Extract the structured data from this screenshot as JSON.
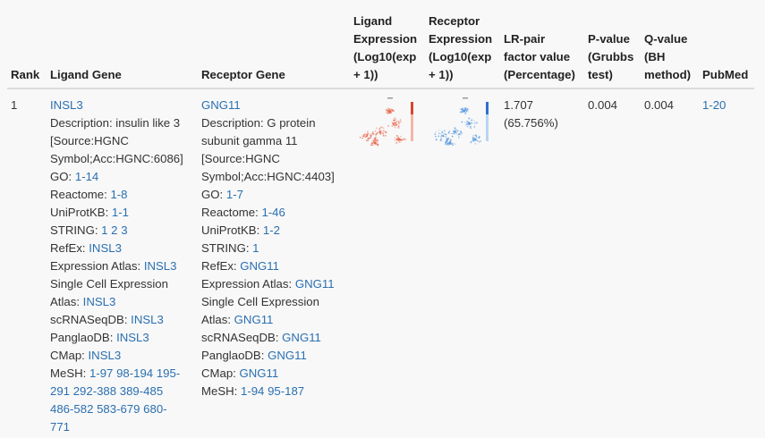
{
  "headers": {
    "rank": "Rank",
    "ligand_gene": "Ligand Gene",
    "receptor_gene": "Receptor Gene",
    "ligand_expr": [
      "Ligand",
      "Expression",
      "(Log10(exp",
      "+ 1))"
    ],
    "receptor_expr": [
      "Receptor",
      "Expression",
      "(Log10(exp",
      "+ 1))"
    ],
    "lr_pair": [
      "LR-pair",
      "factor value",
      "(Percentage)"
    ],
    "pvalue": [
      "P-value",
      "(Grubbs",
      "test)"
    ],
    "qvalue": [
      "Q-value",
      "(BH",
      "method)"
    ],
    "pubmed": "PubMed"
  },
  "row": {
    "rank": "1",
    "ligand": {
      "symbol": "INSL3",
      "desc": [
        "Description: insulin like 3",
        "[Source:HGNC",
        "Symbol;Acc:HGNC:6086]"
      ],
      "go_label": "GO:",
      "go": "1-14",
      "reactome_label": "Reactome:",
      "reactome": "1-8",
      "uniprot_label": "UniProtKB:",
      "uniprot": "1-1",
      "string_label": "STRING:",
      "string": [
        "1",
        "2",
        "3"
      ],
      "refex_label": "RefEx:",
      "refex": "INSL3",
      "atlas_label": "Expression Atlas:",
      "atlas": "INSL3",
      "sc_label_1": "Single Cell Expression",
      "sc_label_2": "Atlas:",
      "sc": "INSL3",
      "scrna_label": "scRNASeqDB:",
      "scrna": "INSL3",
      "panglao_label": "PanglaoDB:",
      "panglao": "INSL3",
      "cmap_label": "CMap:",
      "cmap": "INSL3",
      "mesh_label": "MeSH:",
      "mesh": [
        "1-97",
        "98-194",
        "195-",
        "291",
        "292-388",
        "389-485",
        "486-582",
        "583-679",
        "680-",
        "771"
      ]
    },
    "receptor": {
      "symbol": "GNG11",
      "desc": [
        "Description: G protein",
        "subunit gamma 11",
        "[Source:HGNC",
        "Symbol;Acc:HGNC:4403]"
      ],
      "go_label": "GO:",
      "go": "1-7",
      "reactome_label": "Reactome:",
      "reactome": "1-46",
      "uniprot_label": "UniProtKB:",
      "uniprot": "1-2",
      "string_label": "STRING:",
      "string": "1",
      "refex_label": "RefEx:",
      "refex": "GNG11",
      "atlas_label": "Expression Atlas:",
      "atlas": "GNG11",
      "sc_label_1": "Single Cell Expression",
      "sc_label_2": "Atlas:",
      "sc": "GNG11",
      "scrna_label": "scRNASeqDB:",
      "scrna": "GNG11",
      "panglao_label": "PanglaoDB:",
      "panglao": "GNG11",
      "cmap_label": "CMap:",
      "cmap": "GNG11",
      "mesh_label": "MeSH:",
      "mesh": [
        "1-94",
        "95-187"
      ]
    },
    "lr_value": "1.707",
    "lr_pct": "(65.756%)",
    "pvalue": "0.004",
    "qvalue": "0.004",
    "pubmed": "1-20"
  },
  "colors": {
    "link": "#2a6fb0",
    "ligand_plot": "#e8674c",
    "receptor_plot": "#5a9be0"
  }
}
